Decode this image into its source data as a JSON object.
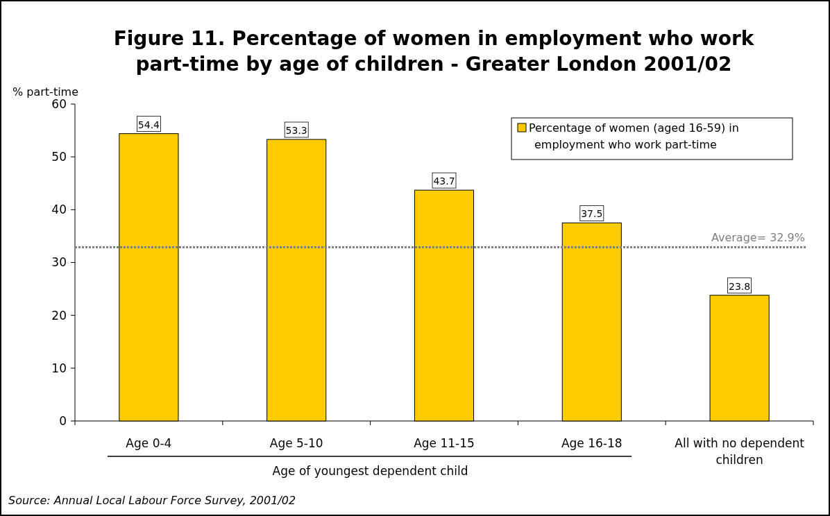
{
  "chart_data": {
    "type": "bar",
    "title": "Figure 11. Percentage of women in employment who work part-time by age of children - Greater London 2001/02",
    "ylabel": "% part-time",
    "xlabel": "Age of youngest dependent child",
    "categories": [
      "Age 0-4",
      "Age 5-10",
      "Age 11-15",
      "Age 16-18",
      "All with no dependent children"
    ],
    "series": [
      {
        "name": "Percentage of women (aged 16-59)  in employment who work part-time",
        "color": "#ffcc00",
        "values": [
          54.4,
          53.3,
          43.7,
          37.5,
          23.8
        ]
      }
    ],
    "ylim": [
      0,
      60
    ],
    "yticks": [
      0,
      10,
      20,
      30,
      40,
      50,
      60
    ],
    "grid": false,
    "legend": "top right",
    "data_labels": true,
    "ref_lines": [
      {
        "axis": "y",
        "value": 32.9,
        "label": "Average= 32.9%",
        "color": "#808080",
        "line_style": "dotted"
      }
    ],
    "annotations": [
      "Source: Annual Local Labour Force Survey, 2001/02"
    ]
  }
}
